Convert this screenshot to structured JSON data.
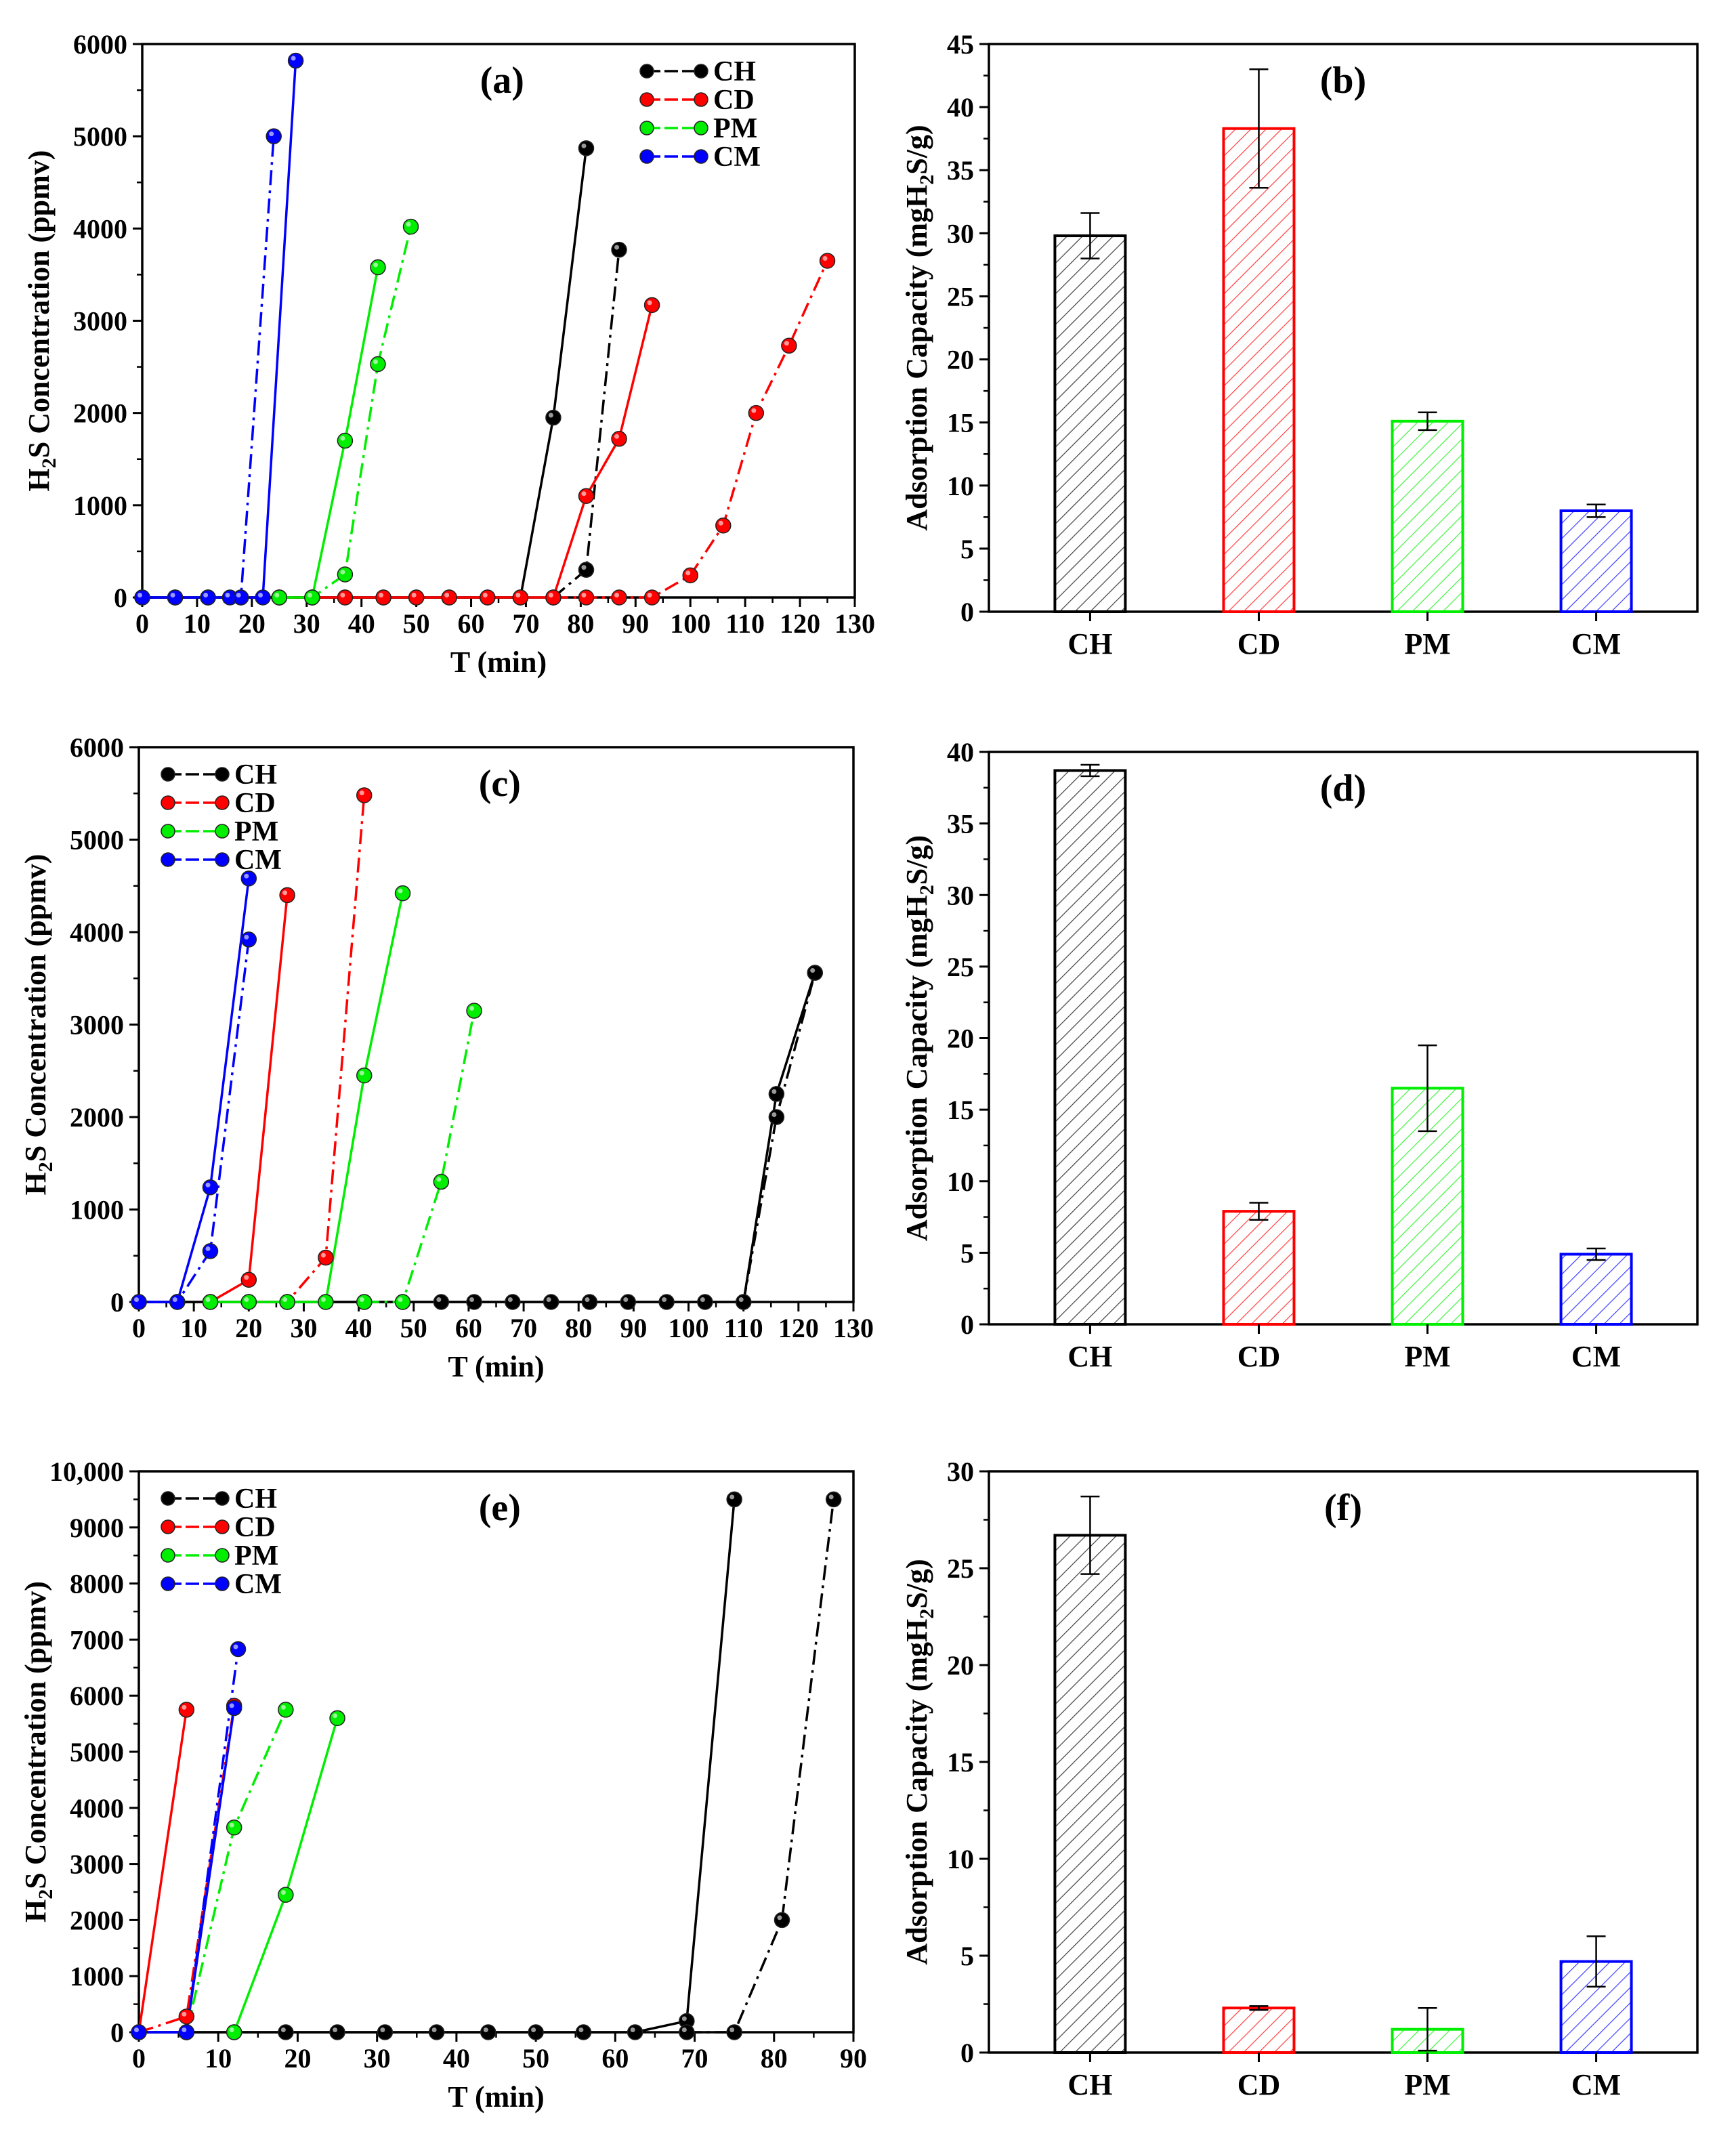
{
  "chart_data": [
    {
      "id": "a",
      "type": "line",
      "panel_label": "(a)",
      "xlabel": "T (min)",
      "ylabel_main": "H",
      "ylabel_sub": "2",
      "ylabel_rest": "S Concentration (ppmv)",
      "xlim": [
        0,
        130
      ],
      "ylim": [
        0,
        6000
      ],
      "xticks": [
        0,
        10,
        20,
        30,
        40,
        50,
        60,
        70,
        80,
        90,
        100,
        110,
        120,
        130
      ],
      "yticks": [
        0,
        1000,
        2000,
        3000,
        4000,
        5000,
        6000
      ],
      "xtick_labels": [
        "0",
        "10",
        "20",
        "30",
        "40",
        "50",
        "60",
        "70",
        "80",
        "90",
        "100",
        "110",
        "120",
        "130"
      ],
      "ytick_labels": [
        "0",
        "1000",
        "2000",
        "3000",
        "4000",
        "5000",
        "6000"
      ],
      "legend_position": "top-right",
      "legend": [
        "CH",
        "CD",
        "PM",
        "CM"
      ],
      "series": [
        {
          "name": "CH-solid",
          "color": "#000000",
          "style": "solid",
          "points": [
            [
              0,
              0
            ],
            [
              6,
              0
            ],
            [
              12,
              0
            ],
            [
              18,
              0
            ],
            [
              25,
              0
            ],
            [
              31,
              0
            ],
            [
              37,
              0
            ],
            [
              44,
              0
            ],
            [
              50,
              0
            ],
            [
              56,
              0
            ],
            [
              63,
              0
            ],
            [
              69,
              0
            ],
            [
              75,
              1950
            ],
            [
              81,
              4870
            ]
          ]
        },
        {
          "name": "CH-dashdot",
          "color": "#000000",
          "style": "dashdot",
          "points": [
            [
              75,
              0
            ],
            [
              81,
              300
            ],
            [
              87,
              3770
            ]
          ]
        },
        {
          "name": "CD-solid",
          "color": "#ff0000",
          "style": "solid",
          "points": [
            [
              25,
              0
            ],
            [
              31,
              0
            ],
            [
              37,
              0
            ],
            [
              44,
              0
            ],
            [
              50,
              0
            ],
            [
              56,
              0
            ],
            [
              63,
              0
            ],
            [
              69,
              0
            ],
            [
              75,
              0
            ],
            [
              81,
              1100
            ],
            [
              87,
              1720
            ],
            [
              93,
              3170
            ]
          ]
        },
        {
          "name": "CD-dashdot",
          "color": "#ff0000",
          "style": "dashdot",
          "points": [
            [
              75,
              0
            ],
            [
              81,
              0
            ],
            [
              87,
              0
            ],
            [
              93,
              0
            ],
            [
              100,
              240
            ],
            [
              106,
              780
            ],
            [
              112,
              2000
            ],
            [
              118,
              2730
            ],
            [
              125,
              3650
            ]
          ]
        },
        {
          "name": "PM-solid",
          "color": "#00ee00",
          "style": "solid",
          "points": [
            [
              25,
              0
            ],
            [
              31,
              0
            ],
            [
              37,
              1700
            ],
            [
              43,
              3580
            ]
          ]
        },
        {
          "name": "PM-dashdot",
          "color": "#00ee00",
          "style": "dashdot",
          "points": [
            [
              25,
              0
            ],
            [
              31,
              0
            ],
            [
              37,
              250
            ],
            [
              43,
              2530
            ],
            [
              49,
              4020
            ]
          ]
        },
        {
          "name": "CM-solid",
          "color": "#0000ff",
          "style": "solid",
          "points": [
            [
              0,
              0
            ],
            [
              6,
              0
            ],
            [
              12,
              0
            ],
            [
              16,
              0
            ],
            [
              22,
              0
            ],
            [
              28,
              5820
            ]
          ]
        },
        {
          "name": "CM-dashdot",
          "color": "#0000ff",
          "style": "dashdot",
          "points": [
            [
              0,
              0
            ],
            [
              6,
              0
            ],
            [
              12,
              0
            ],
            [
              18,
              0
            ],
            [
              24,
              5000
            ]
          ]
        }
      ]
    },
    {
      "id": "b",
      "type": "bar",
      "panel_label": "(b)",
      "ylabel_main": "Adsorption Capacity (mgH",
      "ylabel_sub": "2",
      "ylabel_rest": "S/g)",
      "categories": [
        "CH",
        "CD",
        "PM",
        "CM"
      ],
      "values": [
        29.8,
        38.3,
        15.1,
        8.0
      ],
      "errors": [
        1.8,
        4.7,
        0.7,
        0.5
      ],
      "colors": [
        "#000000",
        "#ff0000",
        "#00ee00",
        "#0000ff"
      ],
      "ylim": [
        0,
        45
      ],
      "yticks": [
        0,
        5,
        10,
        15,
        20,
        25,
        30,
        35,
        40,
        45
      ],
      "ytick_labels": [
        "0",
        "5",
        "10",
        "15",
        "20",
        "25",
        "30",
        "35",
        "40",
        "45"
      ]
    },
    {
      "id": "c",
      "type": "line",
      "panel_label": "(c)",
      "xlabel": "T (min)",
      "ylabel_main": "H",
      "ylabel_sub": "2",
      "ylabel_rest": "S Concentration (ppmv)",
      "xlim": [
        0,
        130
      ],
      "ylim": [
        0,
        6000
      ],
      "xticks": [
        0,
        10,
        20,
        30,
        40,
        50,
        60,
        70,
        80,
        90,
        100,
        110,
        120,
        130
      ],
      "yticks": [
        0,
        1000,
        2000,
        3000,
        4000,
        5000,
        6000
      ],
      "xtick_labels": [
        "0",
        "10",
        "20",
        "30",
        "40",
        "50",
        "60",
        "70",
        "80",
        "90",
        "100",
        "110",
        "120",
        "130"
      ],
      "ytick_labels": [
        "0",
        "1000",
        "2000",
        "3000",
        "4000",
        "5000",
        "6000"
      ],
      "legend_position": "top-left",
      "legend": [
        "CH",
        "CD",
        "PM",
        "CM"
      ],
      "series": [
        {
          "name": "CH-solid",
          "color": "#000000",
          "style": "solid",
          "points": [
            [
              0,
              0
            ],
            [
              7,
              0
            ],
            [
              13,
              0
            ],
            [
              20,
              0
            ],
            [
              27,
              0
            ],
            [
              34,
              0
            ],
            [
              41,
              0
            ],
            [
              48,
              0
            ],
            [
              55,
              0
            ],
            [
              61,
              0
            ],
            [
              68,
              0
            ],
            [
              75,
              0
            ],
            [
              82,
              0
            ],
            [
              89,
              0
            ],
            [
              96,
              0
            ],
            [
              103,
              0
            ],
            [
              110,
              0
            ],
            [
              116,
              2250
            ],
            [
              123,
              3560
            ]
          ]
        },
        {
          "name": "CH-dashdot",
          "color": "#000000",
          "style": "dashdot",
          "points": [
            [
              110,
              0
            ],
            [
              116,
              2000
            ],
            [
              123,
              3560
            ]
          ]
        },
        {
          "name": "CD-solid",
          "color": "#ff0000",
          "style": "solid",
          "points": [
            [
              13,
              0
            ],
            [
              20,
              240
            ],
            [
              27,
              4400
            ]
          ]
        },
        {
          "name": "CD-dashdot",
          "color": "#ff0000",
          "style": "dashdot",
          "points": [
            [
              20,
              0
            ],
            [
              27,
              0
            ],
            [
              34,
              480
            ],
            [
              41,
              5480
            ]
          ]
        },
        {
          "name": "PM-solid",
          "color": "#00ee00",
          "style": "solid",
          "points": [
            [
              13,
              0
            ],
            [
              20,
              0
            ],
            [
              27,
              0
            ],
            [
              34,
              0
            ],
            [
              41,
              2450
            ],
            [
              48,
              4420
            ]
          ]
        },
        {
          "name": "PM-dashdot",
          "color": "#00ee00",
          "style": "dashdot",
          "points": [
            [
              41,
              0
            ],
            [
              48,
              0
            ],
            [
              55,
              1300
            ],
            [
              61,
              3150
            ]
          ]
        },
        {
          "name": "CM-solid",
          "color": "#0000ff",
          "style": "solid",
          "points": [
            [
              0,
              0
            ],
            [
              7,
              0
            ],
            [
              13,
              1240
            ],
            [
              20,
              4580
            ]
          ]
        },
        {
          "name": "CM-dashdot",
          "color": "#0000ff",
          "style": "dashdot",
          "points": [
            [
              0,
              0
            ],
            [
              7,
              0
            ],
            [
              13,
              550
            ],
            [
              20,
              3920
            ]
          ]
        }
      ]
    },
    {
      "id": "d",
      "type": "bar",
      "panel_label": "(d)",
      "ylabel_main": "Adsorption Capacity (mgH",
      "ylabel_sub": "2",
      "ylabel_rest": "S/g)",
      "categories": [
        "CH",
        "CD",
        "PM",
        "CM"
      ],
      "values": [
        38.7,
        7.9,
        16.5,
        4.9
      ],
      "errors": [
        0.4,
        0.6,
        3.0,
        0.4
      ],
      "colors": [
        "#000000",
        "#ff0000",
        "#00ee00",
        "#0000ff"
      ],
      "ylim": [
        0,
        40
      ],
      "yticks": [
        0,
        5,
        10,
        15,
        20,
        25,
        30,
        35,
        40
      ],
      "ytick_labels": [
        "0",
        "5",
        "10",
        "15",
        "20",
        "25",
        "30",
        "35",
        "40"
      ]
    },
    {
      "id": "e",
      "type": "line",
      "panel_label": "(e)",
      "xlabel": "T (min)",
      "ylabel_main": "H",
      "ylabel_sub": "2",
      "ylabel_rest": "S Concentration (ppmv)",
      "xlim": [
        0,
        90
      ],
      "ylim": [
        0,
        10000
      ],
      "xticks": [
        0,
        10,
        20,
        30,
        40,
        50,
        60,
        70,
        80,
        90
      ],
      "yticks": [
        0,
        1000,
        2000,
        3000,
        4000,
        5000,
        6000,
        7000,
        8000,
        9000,
        10000
      ],
      "xtick_labels": [
        "0",
        "10",
        "20",
        "30",
        "40",
        "50",
        "60",
        "70",
        "80",
        "90"
      ],
      "ytick_labels": [
        "0",
        "1000",
        "2000",
        "3000",
        "4000",
        "5000",
        "6000",
        "7000",
        "8000",
        "9000",
        "10,000"
      ],
      "legend_position": "top-left",
      "legend": [
        "CH",
        "CD",
        "PM",
        "CM"
      ],
      "series": [
        {
          "name": "CH-solid",
          "color": "#000000",
          "style": "solid",
          "points": [
            [
              0,
              0
            ],
            [
              6,
              0
            ],
            [
              12,
              0
            ],
            [
              18.5,
              0
            ],
            [
              25,
              0
            ],
            [
              31,
              0
            ],
            [
              37.5,
              0
            ],
            [
              44,
              0
            ],
            [
              50,
              0
            ],
            [
              56,
              0
            ],
            [
              62.5,
              0
            ],
            [
              69,
              200
            ],
            [
              75,
              9500
            ]
          ]
        },
        {
          "name": "CH-dashdot",
          "color": "#000000",
          "style": "dashdot",
          "points": [
            [
              69,
              0
            ],
            [
              75,
              0
            ],
            [
              81,
              2000
            ],
            [
              87.5,
              9500
            ]
          ]
        },
        {
          "name": "CD-solid",
          "color": "#ff0000",
          "style": "solid",
          "points": [
            [
              0,
              0
            ],
            [
              6,
              5750
            ]
          ]
        },
        {
          "name": "CD-dashdot",
          "color": "#ff0000",
          "style": "dashdot",
          "points": [
            [
              0,
              0
            ],
            [
              6,
              280
            ],
            [
              12,
              5820
            ]
          ]
        },
        {
          "name": "PM-solid",
          "color": "#00ee00",
          "style": "solid",
          "points": [
            [
              12,
              0
            ],
            [
              18.5,
              2450
            ],
            [
              25,
              5600
            ]
          ]
        },
        {
          "name": "PM-dashdot",
          "color": "#00ee00",
          "style": "dashdot",
          "points": [
            [
              6,
              0
            ],
            [
              12,
              3650
            ],
            [
              18.5,
              5750
            ]
          ]
        },
        {
          "name": "CM-solid",
          "color": "#0000ff",
          "style": "solid",
          "points": [
            [
              0,
              0
            ],
            [
              6,
              0
            ],
            [
              12,
              5780
            ]
          ]
        },
        {
          "name": "CM-dashdot",
          "color": "#0000ff",
          "style": "dashdot",
          "points": [
            [
              0,
              0
            ],
            [
              6,
              0
            ],
            [
              12.5,
              6830
            ]
          ]
        }
      ]
    },
    {
      "id": "f",
      "type": "bar",
      "panel_label": "(f)",
      "ylabel_main": "Adsorption Capacity (mgH",
      "ylabel_sub": "2",
      "ylabel_rest": "S/g)",
      "categories": [
        "CH",
        "CD",
        "PM",
        "CM"
      ],
      "values": [
        26.7,
        2.3,
        1.2,
        4.7
      ],
      "errors": [
        2.0,
        0.1,
        1.1,
        1.3
      ],
      "colors": [
        "#000000",
        "#ff0000",
        "#00ee00",
        "#0000ff"
      ],
      "ylim": [
        0,
        30
      ],
      "yticks": [
        0,
        5,
        10,
        15,
        20,
        25,
        30
      ],
      "ytick_labels": [
        "0",
        "5",
        "10",
        "15",
        "20",
        "25",
        "30"
      ]
    }
  ]
}
